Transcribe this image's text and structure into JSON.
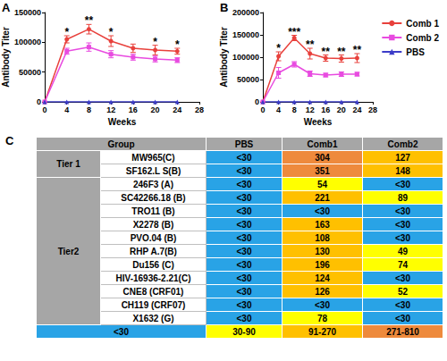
{
  "chart_data": [
    {
      "type": "line",
      "panel": "A",
      "xlabel": "Weeks",
      "ylabel": "Antibody Titer",
      "x": [
        0,
        4,
        8,
        12,
        16,
        20,
        24
      ],
      "xlim": [
        0,
        28
      ],
      "xticks": [
        0,
        4,
        8,
        12,
        16,
        20,
        24,
        28
      ],
      "ylim": [
        0,
        150000
      ],
      "yticks": [
        0,
        50000,
        100000,
        150000
      ],
      "grid": false,
      "series": [
        {
          "name": "Comb 1",
          "color": "#e8413c",
          "marker": "circle",
          "values": [
            0,
            105000,
            122000,
            102000,
            90000,
            87000,
            85000
          ],
          "errors": [
            null,
            6000,
            8000,
            9000,
            7000,
            8000,
            5000
          ]
        },
        {
          "name": "Comb 2",
          "color": "#e84be0",
          "marker": "square",
          "values": [
            0,
            85000,
            92000,
            80000,
            75000,
            72000,
            70000
          ],
          "errors": [
            null,
            5000,
            7000,
            6000,
            5000,
            5000,
            4000
          ]
        },
        {
          "name": "PBS",
          "color": "#3c3cc8",
          "marker": "triangle",
          "values": [
            0,
            0,
            0,
            0,
            0,
            0,
            0
          ]
        }
      ],
      "annotations": [
        {
          "x": 4,
          "text": "*"
        },
        {
          "x": 8,
          "text": "**"
        },
        {
          "x": 12,
          "text": "*"
        },
        {
          "x": 20,
          "text": "*"
        },
        {
          "x": 24,
          "text": "*"
        }
      ]
    },
    {
      "type": "line",
      "panel": "B",
      "xlabel": "Weeks",
      "ylabel": "Antibody Titer",
      "x": [
        0,
        4,
        8,
        12,
        16,
        20,
        24
      ],
      "xlim": [
        0,
        28
      ],
      "xticks": [
        0,
        4,
        8,
        12,
        16,
        20,
        24,
        28
      ],
      "ylim": [
        0,
        200000
      ],
      "yticks": [
        0,
        50000,
        100000,
        150000,
        200000
      ],
      "grid": false,
      "legend": "right",
      "series": [
        {
          "name": "Comb 1",
          "color": "#e8413c",
          "marker": "circle",
          "values": [
            0,
            102000,
            143000,
            108000,
            98000,
            97000,
            98000
          ],
          "errors": [
            null,
            10000,
            6000,
            12000,
            7000,
            8000,
            10000
          ]
        },
        {
          "name": "Comb 2",
          "color": "#e84be0",
          "marker": "square",
          "values": [
            0,
            65000,
            84000,
            63000,
            60000,
            62000,
            62000
          ],
          "errors": [
            null,
            12000,
            6000,
            6000,
            4000,
            5000,
            4000
          ]
        },
        {
          "name": "PBS",
          "color": "#3c3cc8",
          "marker": "triangle",
          "values": [
            0,
            0,
            0,
            0,
            0,
            0,
            0
          ]
        }
      ],
      "annotations": [
        {
          "x": 4,
          "text": "*"
        },
        {
          "x": 8,
          "text": "***"
        },
        {
          "x": 12,
          "text": "**"
        },
        {
          "x": 16,
          "text": "**"
        },
        {
          "x": 20,
          "text": "**"
        },
        {
          "x": 24,
          "text": "**"
        }
      ]
    }
  ],
  "table": {
    "panel": "C",
    "header": [
      "Group",
      "PBS",
      "Comb1",
      "Comb2"
    ],
    "rows": [
      {
        "group": "Tier 1",
        "virus": "MW965(C)",
        "cells": [
          "<30",
          304,
          127
        ]
      },
      {
        "group": "Tier 1",
        "virus": "SF162.L S(B)",
        "cells": [
          "<30",
          351,
          148
        ]
      },
      {
        "group": "Tier2",
        "virus": "246F3 (A)",
        "cells": [
          "<30",
          54,
          "<30"
        ]
      },
      {
        "group": "Tier2",
        "virus": "SC42266.18 (B)",
        "cells": [
          "<30",
          221,
          89
        ]
      },
      {
        "group": "Tier2",
        "virus": "TRO11 (B)",
        "cells": [
          "<30",
          "<30",
          "<30"
        ]
      },
      {
        "group": "Tier2",
        "virus": "X2278 (B)",
        "cells": [
          "<30",
          163,
          "<30"
        ]
      },
      {
        "group": "Tier2",
        "virus": "PVO.04 (B)",
        "cells": [
          "<30",
          108,
          "<30"
        ]
      },
      {
        "group": "Tier2",
        "virus": "RHP A.7(B)",
        "cells": [
          "<30",
          130,
          49
        ]
      },
      {
        "group": "Tier2",
        "virus": "Du156 (C)",
        "cells": [
          "<30",
          196,
          74
        ]
      },
      {
        "group": "Tier2",
        "virus": "HIV-16936-2.21(C)",
        "cells": [
          "<30",
          124,
          "<30"
        ]
      },
      {
        "group": "Tier2",
        "virus": "CNE8 (CRF01)",
        "cells": [
          "<30",
          126,
          52
        ]
      },
      {
        "group": "Tier2",
        "virus": "CH119 (CRF07)",
        "cells": [
          "<30",
          "<30",
          "<30"
        ]
      },
      {
        "group": "Tier2",
        "virus": "X1632 (G)",
        "cells": [
          "<30",
          78,
          "<30"
        ]
      }
    ],
    "legend": [
      {
        "label": "<30",
        "color": "#29a3e6"
      },
      {
        "label": "30-90",
        "color": "#ffff00"
      },
      {
        "label": "91-270",
        "color": "#ffc000"
      },
      {
        "label": "271-810",
        "color": "#ee8a3c"
      }
    ]
  }
}
